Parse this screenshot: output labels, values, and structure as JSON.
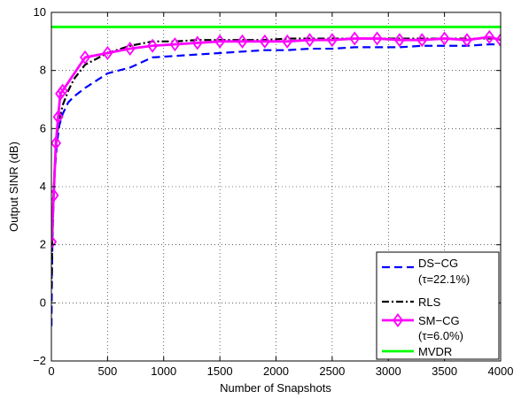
{
  "chart_data": {
    "type": "line",
    "xlabel": "Number of Snapshots",
    "ylabel": "Output SINR (dB)",
    "xlim": [
      0,
      4000
    ],
    "ylim": [
      -2,
      10
    ],
    "xticks": [
      0,
      500,
      1000,
      1500,
      2000,
      2500,
      3000,
      3500,
      4000
    ],
    "yticks": [
      -2,
      0,
      2,
      4,
      6,
      8,
      10
    ],
    "grid": true,
    "legend_position": "bottom-right",
    "series": [
      {
        "key": "ds",
        "name": "DS−CG",
        "name_sub": "(τ=22.1%)",
        "color": "#0000ff",
        "style": "dashed",
        "x": [
          1,
          5,
          10,
          20,
          30,
          50,
          70,
          100,
          150,
          200,
          300,
          500,
          700,
          900,
          1100,
          1300,
          1500,
          1700,
          1900,
          2100,
          2300,
          2500,
          2700,
          2900,
          3100,
          3300,
          3500,
          3700,
          3900,
          4000
        ],
        "y": [
          -0.8,
          1.0,
          2.3,
          3.6,
          4.5,
          5.5,
          6.1,
          6.5,
          6.9,
          7.1,
          7.4,
          7.9,
          8.1,
          8.45,
          8.5,
          8.55,
          8.6,
          8.65,
          8.7,
          8.7,
          8.75,
          8.75,
          8.8,
          8.8,
          8.8,
          8.85,
          8.85,
          8.85,
          8.9,
          8.9
        ]
      },
      {
        "key": "rls",
        "name": "RLS",
        "color": "#000000",
        "style": "dashdot",
        "x": [
          1,
          5,
          10,
          20,
          30,
          50,
          70,
          100,
          150,
          200,
          300,
          500,
          700,
          900,
          1100,
          1300,
          1500,
          1700,
          1900,
          2100,
          2300,
          2500,
          2700,
          2900,
          3100,
          3300,
          3500,
          3700,
          3900,
          4000
        ],
        "y": [
          0.5,
          1.5,
          2.5,
          3.8,
          4.8,
          5.8,
          6.3,
          6.8,
          7.3,
          7.7,
          8.2,
          8.6,
          8.85,
          9.0,
          9.0,
          9.05,
          9.05,
          9.05,
          9.05,
          9.1,
          9.1,
          9.1,
          9.1,
          9.1,
          9.1,
          9.1,
          9.1,
          9.1,
          9.1,
          9.1
        ]
      },
      {
        "key": "sm",
        "name": "SM−CG",
        "name_sub": "(τ=6.0%)",
        "color": "#ff00ff",
        "style": "solid",
        "marker": "diamond",
        "x": [
          1,
          20,
          40,
          60,
          80,
          100,
          300,
          500,
          700,
          900,
          1100,
          1300,
          1500,
          1700,
          1900,
          2100,
          2300,
          2500,
          2700,
          2900,
          3100,
          3300,
          3500,
          3700,
          3900,
          4000
        ],
        "y": [
          2.1,
          3.7,
          5.5,
          6.4,
          7.2,
          7.3,
          8.45,
          8.6,
          8.75,
          8.85,
          8.9,
          8.95,
          9.0,
          9.0,
          9.0,
          9.0,
          9.05,
          9.05,
          9.1,
          9.1,
          9.05,
          9.05,
          9.1,
          9.05,
          9.15,
          9.05
        ]
      },
      {
        "key": "mvdr",
        "name": "MVDR",
        "color": "#00ff00",
        "style": "solid",
        "x": [
          0,
          4000
        ],
        "y": [
          9.5,
          9.5
        ]
      }
    ]
  }
}
